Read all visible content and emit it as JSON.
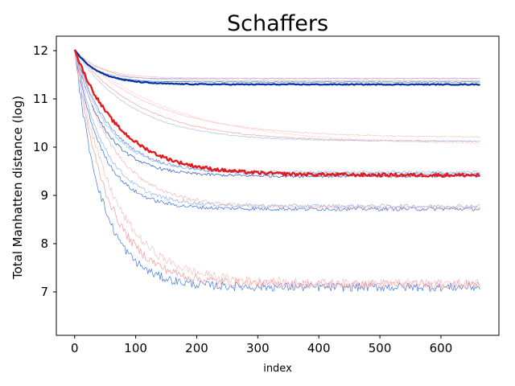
{
  "chart_data": {
    "type": "line",
    "title": "Schaffers",
    "xlabel": "index",
    "ylabel": "Total Manhatten distance (log)",
    "xlim": [
      -30,
      695
    ],
    "ylim": [
      6.1,
      12.3
    ],
    "x_ticks": [
      0,
      100,
      200,
      300,
      400,
      500,
      600
    ],
    "y_ticks": [
      7,
      8,
      9,
      10,
      11,
      12
    ],
    "legend": "none",
    "grid": false,
    "x_max_index": 665,
    "series": [
      {
        "color": "#003399",
        "width": 2.2,
        "start": 12.02,
        "end": 11.3,
        "tau": 40,
        "noise": 0.01
      },
      {
        "color": "#1f5fd6",
        "width": 0.7,
        "start": 12.02,
        "end": 11.35,
        "tau": 35,
        "noise": 0.006
      },
      {
        "color": "#8fb3f0",
        "width": 0.7,
        "start": 12.02,
        "end": 11.42,
        "tau": 30,
        "noise": 0.006
      },
      {
        "color": "#f2a3a3",
        "width": 0.7,
        "start": 12.02,
        "end": 11.38,
        "tau": 45,
        "noise": 0.006
      },
      {
        "color": "#f7c6c6",
        "width": 0.7,
        "start": 12.02,
        "end": 11.43,
        "tau": 42,
        "noise": 0.006
      },
      {
        "color": "#f2a3a3",
        "width": 0.7,
        "start": 12.02,
        "end": 10.12,
        "tau": 110,
        "noise": 0.012
      },
      {
        "color": "#f7c6c6",
        "width": 0.7,
        "start": 12.02,
        "end": 10.2,
        "tau": 130,
        "noise": 0.012
      },
      {
        "color": "#a9c2f2",
        "width": 0.7,
        "start": 12.02,
        "end": 10.12,
        "tau": 95,
        "noise": 0.012
      },
      {
        "color": "#ffd6d6",
        "width": 0.7,
        "start": 12.02,
        "end": 10.05,
        "tau": 160,
        "noise": 0.012
      },
      {
        "color": "#e41a1c",
        "width": 2.4,
        "start": 12.02,
        "end": 9.42,
        "tau": 75,
        "noise": 0.035
      },
      {
        "color": "#2155c9",
        "width": 0.7,
        "start": 12.02,
        "end": 9.4,
        "tau": 50,
        "noise": 0.03
      },
      {
        "color": "#5c87dc",
        "width": 0.7,
        "start": 12.02,
        "end": 9.45,
        "tau": 60,
        "noise": 0.03
      },
      {
        "color": "#9bb9ef",
        "width": 0.7,
        "start": 12.02,
        "end": 9.48,
        "tau": 55,
        "noise": 0.03
      },
      {
        "color": "#3b6fe0",
        "width": 0.7,
        "start": 12.02,
        "end": 8.72,
        "tau": 45,
        "noise": 0.04
      },
      {
        "color": "#8fb3f0",
        "width": 0.7,
        "start": 12.02,
        "end": 8.78,
        "tau": 50,
        "noise": 0.04
      },
      {
        "color": "#f5b5b5",
        "width": 0.7,
        "start": 12.02,
        "end": 8.75,
        "tau": 65,
        "noise": 0.04
      },
      {
        "color": "#3d7ae8",
        "width": 0.7,
        "start": 12.02,
        "end": 7.1,
        "tau": 45,
        "noise": 0.09
      },
      {
        "color": "#f29a9a",
        "width": 0.7,
        "start": 12.02,
        "end": 7.15,
        "tau": 55,
        "noise": 0.09
      },
      {
        "color": "#f7c0c0",
        "width": 0.7,
        "start": 12.02,
        "end": 7.18,
        "tau": 65,
        "noise": 0.09
      }
    ]
  }
}
